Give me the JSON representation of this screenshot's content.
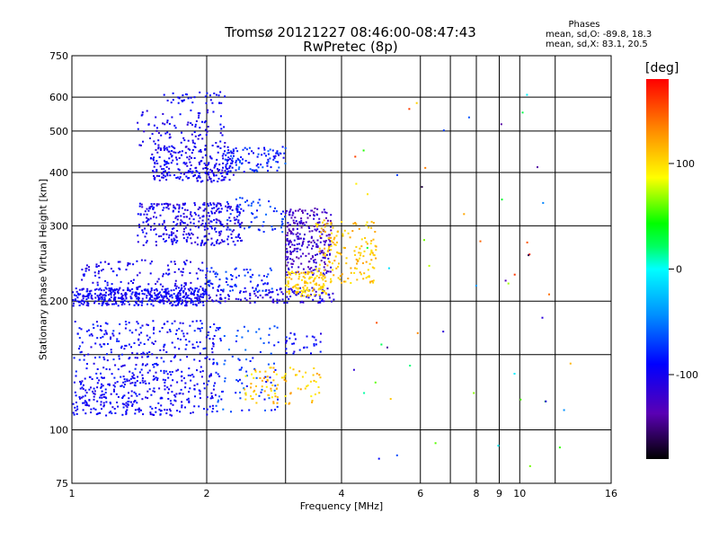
{
  "title_line1": "Tromsø 20121227 08:46:00-08:47:43",
  "title_line2": "RwPretec (8p)",
  "stats": {
    "heading": "Phases",
    "o_mode": "mean, sd,O: -89.8, 18.3",
    "x_mode": "mean, sd,X:  83.1, 20.5"
  },
  "colorbar": {
    "label": "[deg]",
    "range": [
      -180,
      180
    ],
    "ticks": [
      100,
      0,
      -100
    ],
    "tick_labels": [
      "100",
      "0",
      "-100"
    ]
  },
  "chart_data": {
    "type": "scatter",
    "title": "Tromsø 20121227 08:46:00-08:47:43",
    "subtitle": "RwPretec (8p)",
    "xlabel": "Frequency [MHz]",
    "ylabel": "Stationary phase Virtual Height [km]",
    "x_scale": "log2",
    "y_scale": "log",
    "xlim": [
      1,
      16
    ],
    "ylim": [
      75,
      750
    ],
    "x_ticks": [
      1,
      2,
      4,
      6,
      8,
      9,
      10,
      16
    ],
    "x_tick_labels": [
      "1",
      "2",
      "4",
      "6",
      "8",
      "9",
      "10",
      "16"
    ],
    "x_grid_extra": [
      3,
      7,
      12
    ],
    "y_ticks": [
      75,
      100,
      200,
      300,
      400,
      500,
      600,
      750
    ],
    "y_tick_labels": [
      "75",
      "100",
      "200",
      "300",
      "400",
      "500",
      "600",
      "750"
    ],
    "y_grid_extra": [
      150
    ],
    "grid": true,
    "color_by": "phase (deg)",
    "clusters": [
      {
        "f": [
          1.0,
          2.0
        ],
        "h": [
          195,
          215
        ],
        "phase": [
          -110,
          -80
        ],
        "count": 380
      },
      {
        "f": [
          1.05,
          2.0
        ],
        "h": [
          200,
          250
        ],
        "phase": [
          -115,
          -85
        ],
        "count": 170
      },
      {
        "f": [
          2.0,
          3.9
        ],
        "h": [
          198,
          215
        ],
        "phase": [
          -120,
          -90
        ],
        "count": 130
      },
      {
        "f": [
          1.4,
          2.4
        ],
        "h": [
          270,
          340
        ],
        "phase": [
          -120,
          -85
        ],
        "count": 330
      },
      {
        "f": [
          1.5,
          2.3
        ],
        "h": [
          380,
          460
        ],
        "phase": [
          -115,
          -85
        ],
        "count": 240
      },
      {
        "f": [
          1.4,
          2.2
        ],
        "h": [
          460,
          560
        ],
        "phase": [
          -115,
          -85
        ],
        "count": 90
      },
      {
        "f": [
          1.6,
          2.2
        ],
        "h": [
          580,
          620
        ],
        "phase": [
          -100,
          -85
        ],
        "count": 35
      },
      {
        "f": [
          2.2,
          3.0
        ],
        "h": [
          400,
          460
        ],
        "phase": [
          -105,
          -55
        ],
        "count": 100
      },
      {
        "f": [
          2.2,
          3.0
        ],
        "h": [
          290,
          350
        ],
        "phase": [
          -95,
          -55
        ],
        "count": 60
      },
      {
        "f": [
          2.0,
          2.8
        ],
        "h": [
          210,
          240
        ],
        "phase": [
          -100,
          -60
        ],
        "count": 70
      },
      {
        "f": [
          3.0,
          3.8
        ],
        "h": [
          230,
          330
        ],
        "phase": [
          -140,
          -105
        ],
        "count": 260
      },
      {
        "f": [
          3.0,
          3.7
        ],
        "h": [
          205,
          235
        ],
        "phase": [
          90,
          120
        ],
        "count": 120
      },
      {
        "f": [
          3.5,
          4.8
        ],
        "h": [
          220,
          310
        ],
        "phase": [
          95,
          125
        ],
        "count": 160
      },
      {
        "f": [
          1.0,
          2.1
        ],
        "h": [
          108,
          135
        ],
        "phase": [
          -110,
          -80
        ],
        "count": 320
      },
      {
        "f": [
          1.0,
          2.1
        ],
        "h": [
          135,
          180
        ],
        "phase": [
          -110,
          -75
        ],
        "count": 260
      },
      {
        "f": [
          2.1,
          2.9
        ],
        "h": [
          110,
          175
        ],
        "phase": [
          -95,
          -50
        ],
        "count": 90
      },
      {
        "f": [
          2.4,
          3.6
        ],
        "h": [
          115,
          140
        ],
        "phase": [
          90,
          130
        ],
        "count": 90
      },
      {
        "f": [
          3.0,
          3.6
        ],
        "h": [
          150,
          170
        ],
        "phase": [
          -110,
          -80
        ],
        "count": 30
      },
      {
        "f": [
          4.2,
          13.0
        ],
        "h": [
          80,
          620
        ],
        "phase": [
          -170,
          170
        ],
        "count": 55
      }
    ]
  }
}
